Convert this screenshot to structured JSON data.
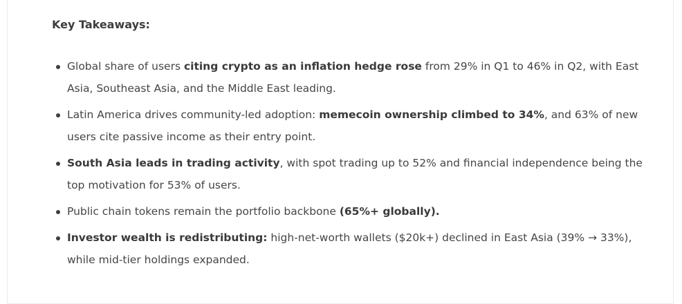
{
  "title": "Key Takeaways:",
  "items": [
    {
      "pre": "Global share of users ",
      "bold": "citing crypto as an inflation hedge rose",
      "post": " from 29% in Q1 to 46% in Q2, with East Asia, Southeast Asia, and the Middle East leading."
    },
    {
      "pre": "Latin America drives community-led adoption: ",
      "bold": "memecoin ownership climbed to 34%",
      "post": ", and 63% of new users cite passive income as their entry point."
    },
    {
      "pre": "",
      "bold": "South Asia leads in trading activity",
      "post": ", with spot trading up to 52% and financial independence being the top motivation for 53% of users."
    },
    {
      "pre": "Public chain tokens remain the portfolio backbone ",
      "bold": "(65%+ globally).",
      "post": ""
    },
    {
      "pre": "",
      "bold": "Investor wealth is redistributing:",
      "post": " high-net-worth wallets ($20k+) declined in East Asia (39% → 33%), while mid-tier holdings expanded."
    }
  ]
}
